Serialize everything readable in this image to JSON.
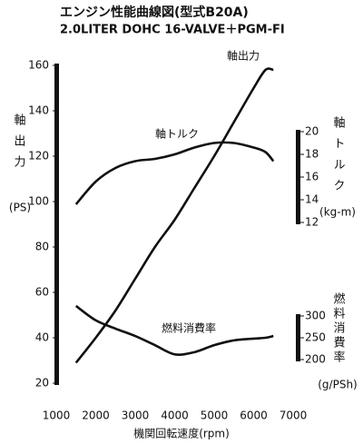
{
  "chart_data": {
    "type": "line",
    "title": "エンジン性能曲線図(型式B20A)",
    "subtitle": "2.0LITER DOHC 16-VALVE＋PGM-FI",
    "x_label": "機関回転速度(rpm)",
    "y_label": "軸出力",
    "y_unit": "(PS)",
    "y2_label": "軸トルク",
    "y2_unit": "(kg-m)",
    "y3_label": "燃料消費率",
    "y3_unit": "(g/PSh)",
    "x": [
      1500,
      2000,
      2500,
      3000,
      3500,
      4000,
      4500,
      5000,
      5500,
      6000,
      6300,
      6500
    ],
    "xlim": [
      1000,
      7000
    ],
    "xticks": [
      1000,
      2000,
      3000,
      4000,
      5000,
      6000,
      7000
    ],
    "ylim": [
      20,
      160
    ],
    "yticks": [
      20,
      40,
      60,
      80,
      100,
      120,
      140,
      160
    ],
    "y2lim": [
      12,
      20
    ],
    "y2ticks": [
      12,
      14,
      16,
      18,
      20
    ],
    "y3lim": [
      200,
      300
    ],
    "y3ticks": [
      200,
      250,
      300
    ],
    "series": [
      {
        "name": "軸出力",
        "color": "#111111",
        "axis": "y",
        "values": [
          29,
          40,
          52,
          66,
          80,
          92,
          106,
          120,
          135,
          150,
          158,
          158
        ]
      },
      {
        "name": "軸トルク",
        "color": "#111111",
        "axis": "y2",
        "values": [
          13.6,
          15.6,
          16.8,
          17.4,
          17.6,
          18.0,
          18.6,
          19.0,
          19.0,
          18.6,
          18.2,
          17.4
        ]
      },
      {
        "name": "燃料消費率",
        "color": "#111111",
        "axis": "y3",
        "values": [
          323,
          290,
          271,
          254,
          233,
          212,
          217,
          233,
          244,
          248,
          250,
          254
        ]
      }
    ]
  }
}
